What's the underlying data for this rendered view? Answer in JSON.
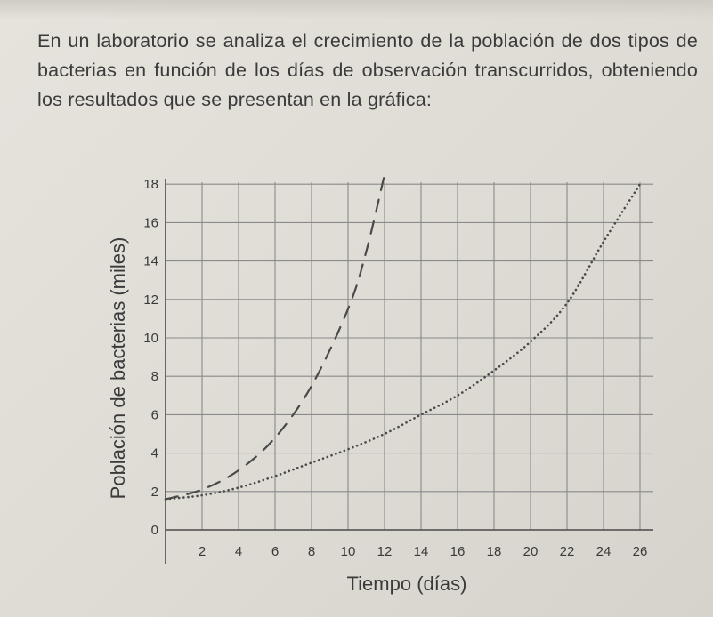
{
  "problem_statement": "En un laboratorio se analiza el crecimiento de la población de dos tipos de bacterias en función de los días de observación transcurridos, obteniendo los resultados que se presentan en la gráfica:",
  "chart_data": {
    "type": "line",
    "xlabel": "Tiempo (días)",
    "ylabel": "Población de bacterias (miles)",
    "x_ticks": [
      "2",
      "4",
      "6",
      "8",
      "10",
      "12",
      "14",
      "16",
      "18",
      "20",
      "22",
      "24",
      "26"
    ],
    "y_ticks": [
      "0",
      "2",
      "4",
      "6",
      "8",
      "10",
      "12",
      "14",
      "16",
      "18"
    ],
    "xlim": [
      0,
      26
    ],
    "ylim": [
      0,
      18
    ],
    "grid": true,
    "series": [
      {
        "style": "dashed",
        "color": "#4a4a4a",
        "x": [
          0,
          2,
          4,
          6,
          8,
          10,
          11,
          12
        ],
        "y": [
          1.6,
          2.1,
          3.1,
          4.8,
          7.5,
          11.5,
          14.5,
          18.5
        ]
      },
      {
        "style": "dotted",
        "color": "#4a4a4a",
        "x": [
          0,
          2,
          4,
          6,
          8,
          10,
          12,
          14,
          16,
          18,
          20,
          22,
          24,
          26
        ],
        "y": [
          1.6,
          1.8,
          2.2,
          2.8,
          3.5,
          4.2,
          5.0,
          6.0,
          7.0,
          8.3,
          9.8,
          11.8,
          15.0,
          18.0
        ]
      }
    ]
  }
}
